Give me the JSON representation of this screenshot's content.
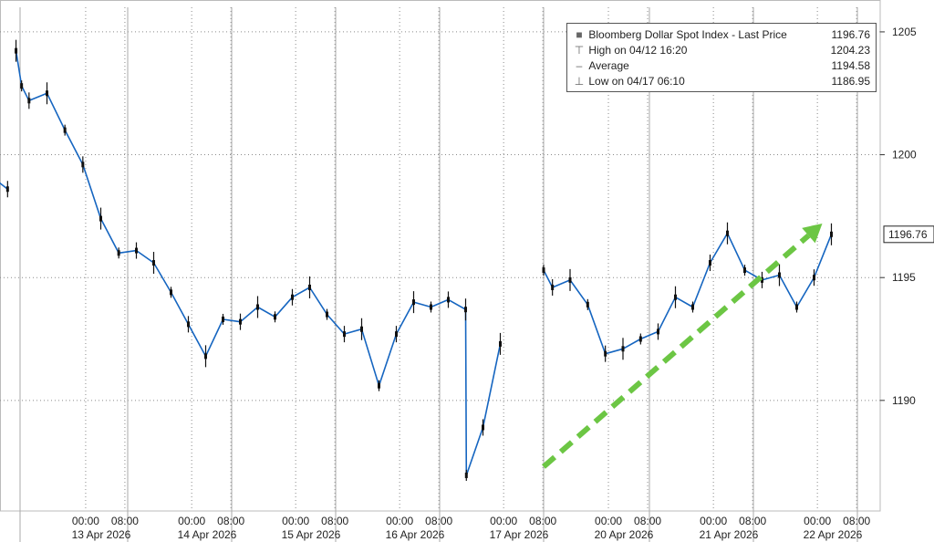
{
  "chart_data": {
    "type": "line",
    "series": [
      {
        "name": "Bloomberg Dollar Spot Index - Last Price",
        "x": [
          "2026-04-10 14:00",
          "2026-04-10 20:00",
          "2026-04-12 16:20",
          "2026-04-12 20:00",
          "2026-04-13 02:00",
          "2026-04-13 06:00",
          "2026-04-13 10:00",
          "2026-04-13 14:00",
          "2026-04-13 18:00",
          "2026-04-13 22:00",
          "2026-04-14 02:00",
          "2026-04-14 06:00",
          "2026-04-14 10:00",
          "2026-04-14 14:00",
          "2026-04-14 18:00",
          "2026-04-14 22:00",
          "2026-04-15 02:00",
          "2026-04-15 06:00",
          "2026-04-15 10:00",
          "2026-04-15 14:00",
          "2026-04-15 18:00",
          "2026-04-15 22:00",
          "2026-04-16 02:00",
          "2026-04-16 06:00",
          "2026-04-16 10:00",
          "2026-04-16 14:00",
          "2026-04-16 18:00",
          "2026-04-16 22:00",
          "2026-04-17 02:00",
          "2026-04-17 06:00",
          "2026-04-17 06:10",
          "2026-04-17 10:00",
          "2026-04-17 14:00",
          "2026-04-19 20:00",
          "2026-04-20 02:00",
          "2026-04-20 06:00",
          "2026-04-20 10:00",
          "2026-04-20 14:00",
          "2026-04-20 18:00",
          "2026-04-20 22:00",
          "2026-04-21 02:00",
          "2026-04-21 06:00",
          "2026-04-21 10:00",
          "2026-04-21 14:00",
          "2026-04-21 18:00",
          "2026-04-21 22:00",
          "2026-04-22 02:00",
          "2026-04-22 06:00",
          "2026-04-22 10:00",
          "2026-04-22 14:00",
          "2026-04-22 18:00"
        ],
        "values": [
          1199.2,
          1198.6,
          1204.23,
          1202.8,
          1202.2,
          1202.5,
          1201.0,
          1199.6,
          1197.4,
          1196.0,
          1196.1,
          1195.6,
          1194.4,
          1193.1,
          1191.8,
          1193.3,
          1193.2,
          1193.8,
          1193.4,
          1194.2,
          1194.6,
          1193.5,
          1192.7,
          1192.9,
          1190.6,
          1192.7,
          1194.0,
          1193.8,
          1194.1,
          1193.7,
          1186.95,
          1188.9,
          1192.3,
          1195.3,
          1194.6,
          1194.9,
          1193.9,
          1191.9,
          1192.1,
          1192.5,
          1192.8,
          1194.2,
          1193.8,
          1195.6,
          1196.8,
          1195.3,
          1194.9,
          1195.1,
          1193.8,
          1195.0,
          1196.76
        ]
      }
    ],
    "ylim": [
      1185.5,
      1206
    ],
    "yticks": [
      "1190",
      "1195",
      "1200",
      "1205"
    ],
    "last_value_label": "1196.76",
    "x_time_labels": [
      "00:00",
      "08:00",
      "00:00",
      "08:00",
      "00:00",
      "08:00",
      "00:00",
      "08:00",
      "00:00",
      "08:00",
      "00:00",
      "08:00",
      "00:00",
      "08:00",
      "00:00",
      "08:00"
    ],
    "x_date_labels": [
      "13 Apr 2026",
      "14 Apr 2026",
      "15 Apr 2026",
      "16 Apr 2026",
      "17 Apr 2026",
      "20 Apr 2026",
      "21 Apr 2026",
      "22 Apr 2026"
    ],
    "grid": true,
    "legend_placement": "top-right",
    "line_color": "#1565c0",
    "candle_color": "#111111",
    "trend_arrow_color": "#6cc644",
    "trend_arrow": {
      "from": [
        "2026-04-19 20:00",
        1187.3
      ],
      "to": [
        "2026-04-22 18:00",
        1197.2
      ]
    }
  },
  "legend": {
    "title": "Bloomberg Dollar Spot Index - Last Price",
    "title_value": "1196.76",
    "rows": [
      {
        "label": "High on 04/12 16:20",
        "value": "1204.23"
      },
      {
        "label": "Average",
        "value": "1194.58"
      },
      {
        "label": "Low on 04/17 06:10",
        "value": "1186.95"
      }
    ]
  }
}
